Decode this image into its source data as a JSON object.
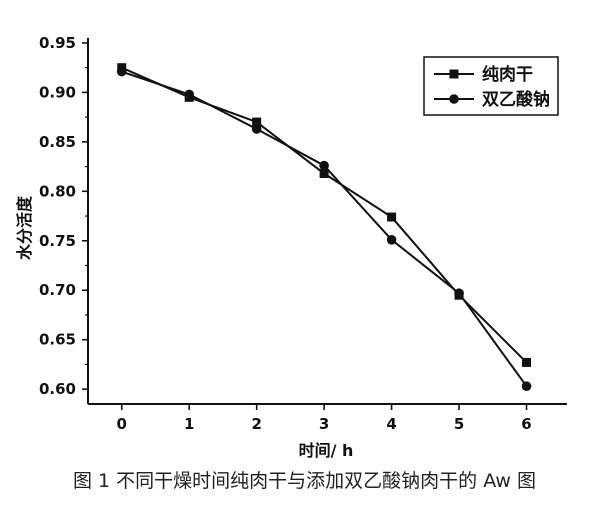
{
  "chart_data": {
    "type": "line",
    "title": "",
    "xlabel": "时间/ h",
    "ylabel": "水分活度",
    "x": [
      0,
      1,
      2,
      3,
      4,
      5,
      6
    ],
    "xlim": [
      -0.5,
      6.6
    ],
    "ylim": [
      0.585,
      0.955
    ],
    "x_ticks": [
      "0",
      "1",
      "2",
      "3",
      "4",
      "5",
      "6"
    ],
    "y_ticks": [
      "0.60",
      "0.65",
      "0.70",
      "0.75",
      "0.80",
      "0.85",
      "0.90",
      "0.95"
    ],
    "grid": false,
    "legend_position": "top-right",
    "series": [
      {
        "name": "纯肉干",
        "marker": "square",
        "color": "#111111",
        "values": [
          0.925,
          0.895,
          0.87,
          0.818,
          0.774,
          0.695,
          0.627
        ]
      },
      {
        "name": "双乙酸钠",
        "marker": "circle",
        "color": "#111111",
        "values": [
          0.921,
          0.898,
          0.863,
          0.826,
          0.751,
          0.697,
          0.603
        ]
      }
    ]
  },
  "caption": "图 1   不同干燥时间纯肉干与添加双乙酸钠肉干的 Aw 图"
}
